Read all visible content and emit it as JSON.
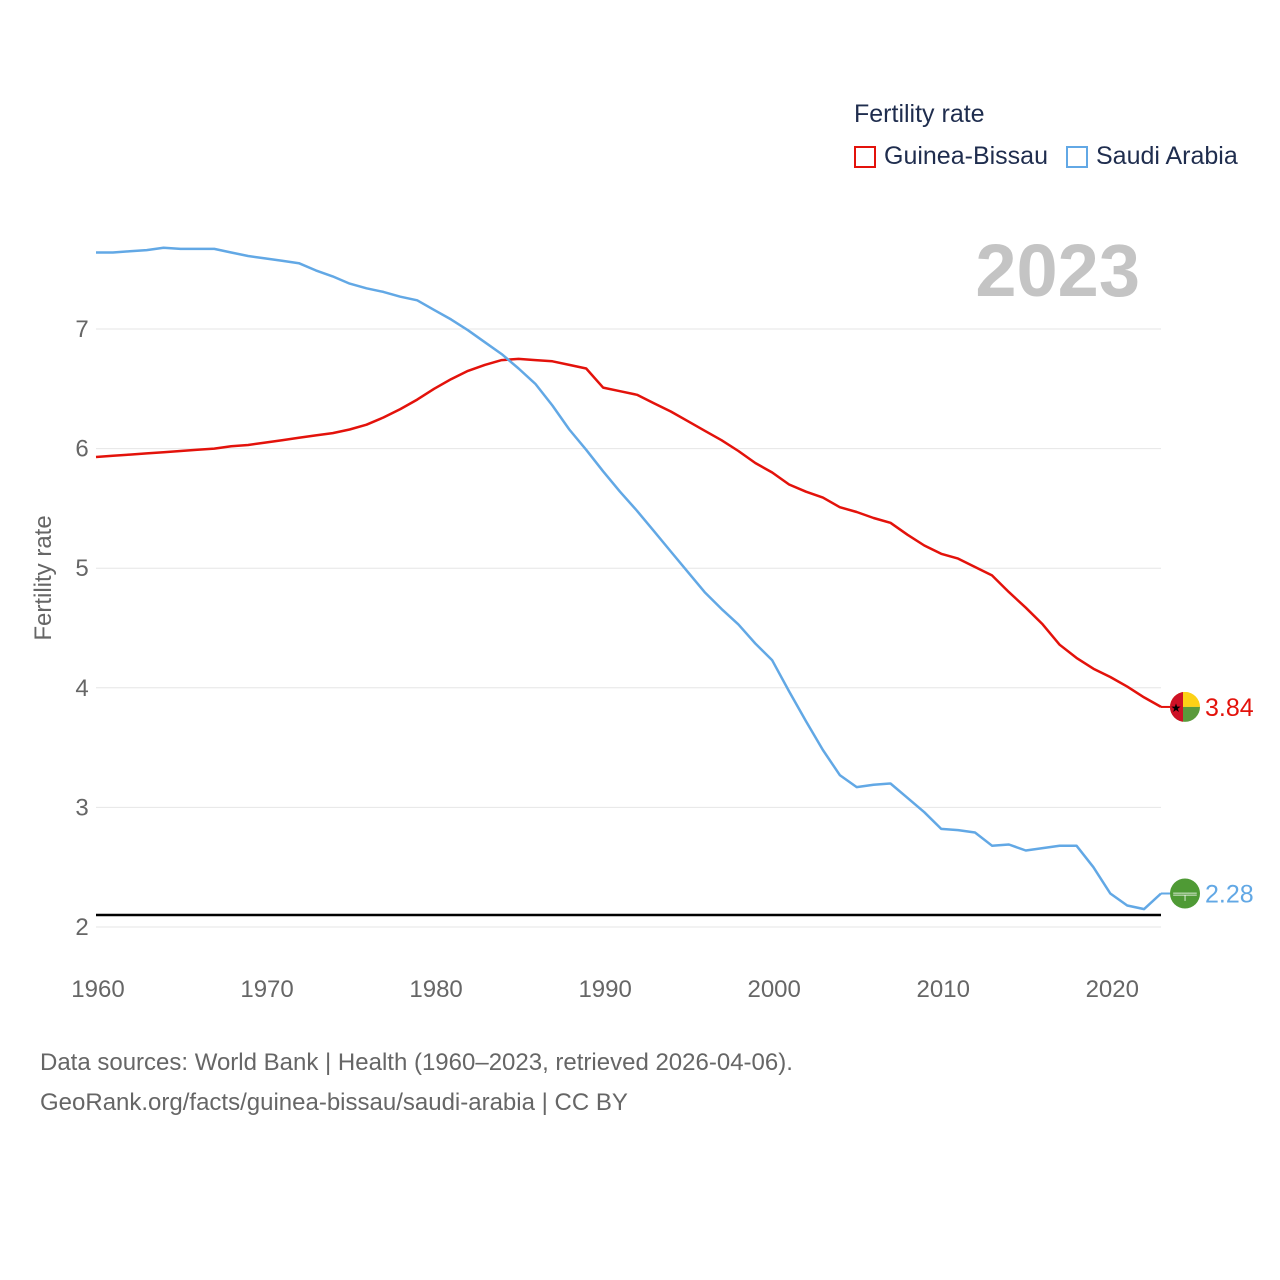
{
  "chart_data": {
    "type": "line",
    "title": "",
    "legend_title": "Fertility rate",
    "year_label": "2023",
    "xlabel": "",
    "ylabel": "Fertility rate",
    "xlim": [
      1960,
      2023
    ],
    "ylim": [
      1.9,
      7.95
    ],
    "xticks": [
      1960,
      1970,
      1980,
      1990,
      2000,
      2010,
      2020
    ],
    "yticks": [
      2,
      3,
      4,
      5,
      6,
      7
    ],
    "reference_line": {
      "y": 2.1,
      "color": "#000000"
    },
    "x": [
      1960,
      1961,
      1962,
      1963,
      1964,
      1965,
      1966,
      1967,
      1968,
      1969,
      1970,
      1971,
      1972,
      1973,
      1974,
      1975,
      1976,
      1977,
      1978,
      1979,
      1980,
      1981,
      1982,
      1983,
      1984,
      1985,
      1986,
      1987,
      1988,
      1989,
      1990,
      1991,
      1992,
      1993,
      1994,
      1995,
      1996,
      1997,
      1998,
      1999,
      2000,
      2001,
      2002,
      2003,
      2004,
      2005,
      2006,
      2007,
      2008,
      2009,
      2010,
      2011,
      2012,
      2013,
      2014,
      2015,
      2016,
      2017,
      2018,
      2019,
      2020,
      2021,
      2022,
      2023
    ],
    "series": [
      {
        "name": "Guinea-Bissau",
        "color": "#e3120b",
        "end_label": "3.84",
        "values": [
          5.93,
          5.94,
          5.95,
          5.96,
          5.97,
          5.98,
          5.99,
          6.0,
          6.02,
          6.03,
          6.05,
          6.07,
          6.09,
          6.11,
          6.13,
          6.16,
          6.2,
          6.26,
          6.33,
          6.41,
          6.5,
          6.58,
          6.65,
          6.7,
          6.74,
          6.75,
          6.74,
          6.73,
          6.7,
          6.67,
          6.51,
          6.48,
          6.45,
          6.38,
          6.31,
          6.23,
          6.15,
          6.07,
          5.98,
          5.88,
          5.8,
          5.7,
          5.64,
          5.59,
          5.51,
          5.47,
          5.42,
          5.38,
          5.28,
          5.19,
          5.12,
          5.08,
          5.01,
          4.94,
          4.8,
          4.67,
          4.53,
          4.36,
          4.25,
          4.16,
          4.09,
          4.01,
          3.92,
          3.84
        ]
      },
      {
        "name": "Saudi Arabia",
        "color": "#62a8e5",
        "end_label": "2.28",
        "values": [
          7.64,
          7.64,
          7.65,
          7.66,
          7.68,
          7.67,
          7.67,
          7.67,
          7.64,
          7.61,
          7.59,
          7.57,
          7.55,
          7.49,
          7.44,
          7.38,
          7.34,
          7.31,
          7.27,
          7.24,
          7.16,
          7.08,
          6.99,
          6.89,
          6.79,
          6.67,
          6.54,
          6.36,
          6.16,
          5.99,
          5.81,
          5.64,
          5.48,
          5.31,
          5.14,
          4.97,
          4.8,
          4.66,
          4.53,
          4.37,
          4.23,
          3.97,
          3.72,
          3.48,
          3.27,
          3.17,
          3.19,
          3.2,
          3.08,
          2.96,
          2.82,
          2.81,
          2.79,
          2.68,
          2.69,
          2.64,
          2.66,
          2.68,
          2.68,
          2.5,
          2.28,
          2.18,
          2.15,
          2.28
        ]
      }
    ]
  },
  "footer": {
    "line1": "Data sources: World Bank | Health (1960–2023, retrieved 2026-04-06).",
    "line2": "GeoRank.org/facts/guinea-bissau/saudi-arabia | CC BY"
  }
}
